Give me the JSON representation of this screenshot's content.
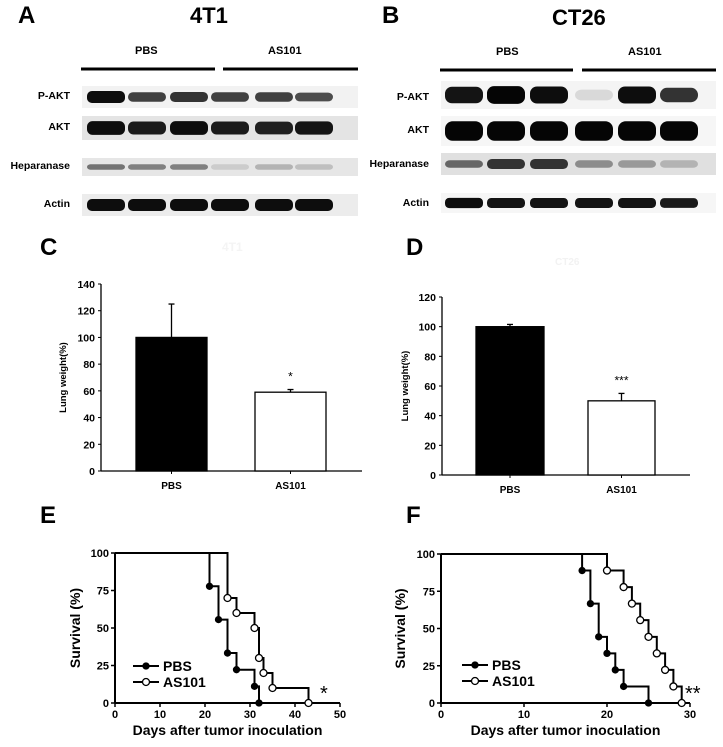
{
  "panels": {
    "A": {
      "label": "A",
      "title": "4T1"
    },
    "B": {
      "label": "B",
      "title": "CT26"
    },
    "C": {
      "label": "C",
      "faint_title": "4T1"
    },
    "D": {
      "label": "D",
      "faint_title": "CT26"
    },
    "E": {
      "label": "E"
    },
    "F": {
      "label": "F"
    }
  },
  "blots": {
    "groups": [
      "PBS",
      "AS101"
    ],
    "rows": [
      "P-AKT",
      "AKT",
      "Heparanase",
      "Actin"
    ],
    "A": {
      "intensity": {
        "P-AKT": [
          0.95,
          0.75,
          0.8,
          0.75,
          0.75,
          0.7
        ],
        "AKT": [
          0.95,
          0.9,
          0.95,
          0.9,
          0.88,
          0.92
        ],
        "Heparanase": [
          0.55,
          0.5,
          0.5,
          0.2,
          0.3,
          0.25
        ],
        "Actin": [
          0.95,
          0.95,
          0.95,
          0.95,
          0.95,
          0.95
        ]
      }
    },
    "B": {
      "intensity": {
        "P-AKT": [
          0.92,
          0.98,
          0.95,
          0.15,
          0.95,
          0.8
        ],
        "AKT": [
          0.98,
          0.98,
          0.98,
          0.98,
          0.98,
          0.98
        ],
        "Heparanase": [
          0.6,
          0.8,
          0.8,
          0.45,
          0.4,
          0.3
        ],
        "Actin": [
          0.95,
          0.92,
          0.92,
          0.92,
          0.92,
          0.9
        ]
      }
    }
  },
  "chart_data": [
    {
      "panel": "C",
      "type": "bar",
      "title": "",
      "categories": [
        "PBS",
        "AS101"
      ],
      "values": [
        100,
        59
      ],
      "errors": [
        25,
        2
      ],
      "fills": [
        "#000000",
        "#ffffff"
      ],
      "significance": [
        "",
        "*"
      ],
      "xlabel": "",
      "ylabel": "Lung weight(%)",
      "ylim": [
        0,
        140
      ],
      "yticks": [
        0,
        20,
        40,
        60,
        80,
        100,
        120,
        140
      ],
      "grid": false
    },
    {
      "panel": "D",
      "type": "bar",
      "title": "",
      "categories": [
        "PBS",
        "AS101"
      ],
      "values": [
        100,
        50
      ],
      "errors": [
        1.5,
        5
      ],
      "fills": [
        "#000000",
        "#ffffff"
      ],
      "significance": [
        "",
        "***"
      ],
      "xlabel": "",
      "ylabel": "Lung weight(%)",
      "ylim": [
        0,
        120
      ],
      "yticks": [
        0,
        20,
        40,
        60,
        80,
        100,
        120
      ],
      "grid": false
    },
    {
      "panel": "E",
      "type": "line",
      "subtype": "kaplan-meier",
      "xlabel": "Days after tumor inoculation",
      "ylabel": "Survival (%)",
      "xlim": [
        0,
        50
      ],
      "ylim": [
        0,
        100
      ],
      "xticks": [
        0,
        10,
        20,
        30,
        40,
        50
      ],
      "yticks": [
        0,
        25,
        50,
        75,
        100
      ],
      "legend": {
        "position": "lower-left",
        "entries": [
          "PBS",
          "AS101"
        ]
      },
      "significance": "*",
      "series": [
        {
          "name": "PBS",
          "marker": "filled-circle",
          "x": [
            0,
            21,
            23,
            25,
            27,
            31,
            32
          ],
          "y": [
            100,
            77.8,
            55.6,
            33.3,
            22.2,
            11.1,
            0
          ]
        },
        {
          "name": "AS101",
          "marker": "open-circle",
          "x": [
            0,
            25,
            27,
            31,
            32,
            33,
            35,
            43
          ],
          "y": [
            100,
            70,
            60,
            50,
            30,
            20,
            10,
            0
          ]
        }
      ]
    },
    {
      "panel": "F",
      "type": "line",
      "subtype": "kaplan-meier",
      "xlabel": "Days after tumor inoculation",
      "ylabel": "Survival (%)",
      "xlim": [
        0,
        30
      ],
      "ylim": [
        0,
        100
      ],
      "xticks": [
        0,
        10,
        20,
        30
      ],
      "yticks": [
        0,
        25,
        50,
        75,
        100
      ],
      "legend": {
        "position": "lower-left",
        "entries": [
          "PBS",
          "AS101"
        ]
      },
      "significance": "**",
      "series": [
        {
          "name": "PBS",
          "marker": "filled-circle",
          "x": [
            0,
            17,
            18,
            19,
            20,
            21,
            22,
            25
          ],
          "y": [
            100,
            88.9,
            66.7,
            44.4,
            33.3,
            22.2,
            11.1,
            0
          ]
        },
        {
          "name": "AS101",
          "marker": "open-circle",
          "x": [
            0,
            20,
            22,
            23,
            24,
            25,
            26,
            27,
            28,
            29
          ],
          "y": [
            100,
            88.9,
            77.8,
            66.7,
            55.6,
            44.4,
            33.3,
            22.2,
            11.1,
            0
          ]
        }
      ]
    }
  ]
}
